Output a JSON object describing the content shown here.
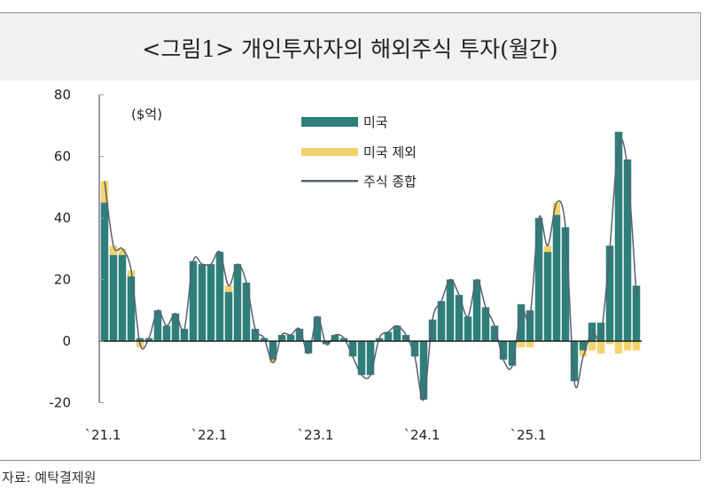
{
  "title": "<그림1> 개인투자자의 해외주식 투자(월간)",
  "source": "자료: 예탁결제원",
  "chart_data": {
    "type": "bar",
    "stacked": true,
    "unit_label": "($억)",
    "ylim": [
      -20,
      80
    ],
    "yticks": [
      -20,
      0,
      20,
      40,
      60,
      80
    ],
    "x_start": "2021-01",
    "x_end": "2026-01",
    "xtick_labels": [
      {
        "index": 0,
        "label": "`21.1"
      },
      {
        "index": 12,
        "label": "`22.1"
      },
      {
        "index": 24,
        "label": "`23.1"
      },
      {
        "index": 36,
        "label": "`24.1"
      },
      {
        "index": 48,
        "label": "`25.1"
      }
    ],
    "legend_position": "top-center",
    "colors": {
      "us": "#2e7f7a",
      "non_us": "#f3d36b",
      "total": "#5a5f73"
    },
    "series": [
      {
        "name": "미국",
        "kind": "bar",
        "values": [
          45,
          28,
          28,
          21,
          1,
          1,
          10,
          5,
          9,
          4,
          26,
          25,
          25,
          29,
          16,
          25,
          19,
          4,
          1,
          -6,
          2,
          2,
          4,
          -4,
          8,
          -1,
          2,
          1,
          -5,
          -11,
          -11,
          1,
          3,
          5,
          2,
          -5,
          -19,
          7,
          13,
          20,
          15,
          8,
          20,
          11,
          5,
          -6,
          -8,
          12,
          10,
          40,
          29,
          41,
          37,
          -13,
          -3,
          6,
          6,
          31,
          68,
          59,
          18
        ]
      },
      {
        "name": "미국 제외",
        "kind": "bar",
        "values": [
          7,
          3,
          2,
          2,
          -2,
          0,
          0,
          0,
          0,
          0,
          0,
          0,
          0,
          0,
          2,
          0,
          0,
          0,
          0,
          -1,
          0,
          0,
          0,
          0,
          0,
          0,
          0,
          0,
          0,
          0,
          0,
          0,
          0,
          0,
          0,
          0,
          0,
          0,
          0,
          0,
          0,
          0,
          0,
          0,
          0,
          0,
          0,
          -2,
          -2,
          0,
          2,
          4,
          0,
          0,
          -2,
          -3,
          -4,
          -1,
          -4,
          -3,
          -3
        ]
      },
      {
        "name": "주식 종합",
        "kind": "line",
        "values": [
          52,
          31,
          30,
          23,
          -1,
          1,
          10,
          5,
          9,
          4,
          26,
          25,
          25,
          29,
          18,
          25,
          19,
          4,
          1,
          -7,
          2,
          2,
          4,
          -4,
          8,
          -1,
          2,
          1,
          -5,
          -11,
          -11,
          1,
          3,
          5,
          2,
          -5,
          -19,
          7,
          13,
          20,
          15,
          8,
          20,
          11,
          5,
          -6,
          -8,
          10,
          8,
          40,
          31,
          45,
          37,
          -13,
          -5,
          3,
          2,
          30,
          64,
          56,
          15
        ]
      }
    ]
  }
}
